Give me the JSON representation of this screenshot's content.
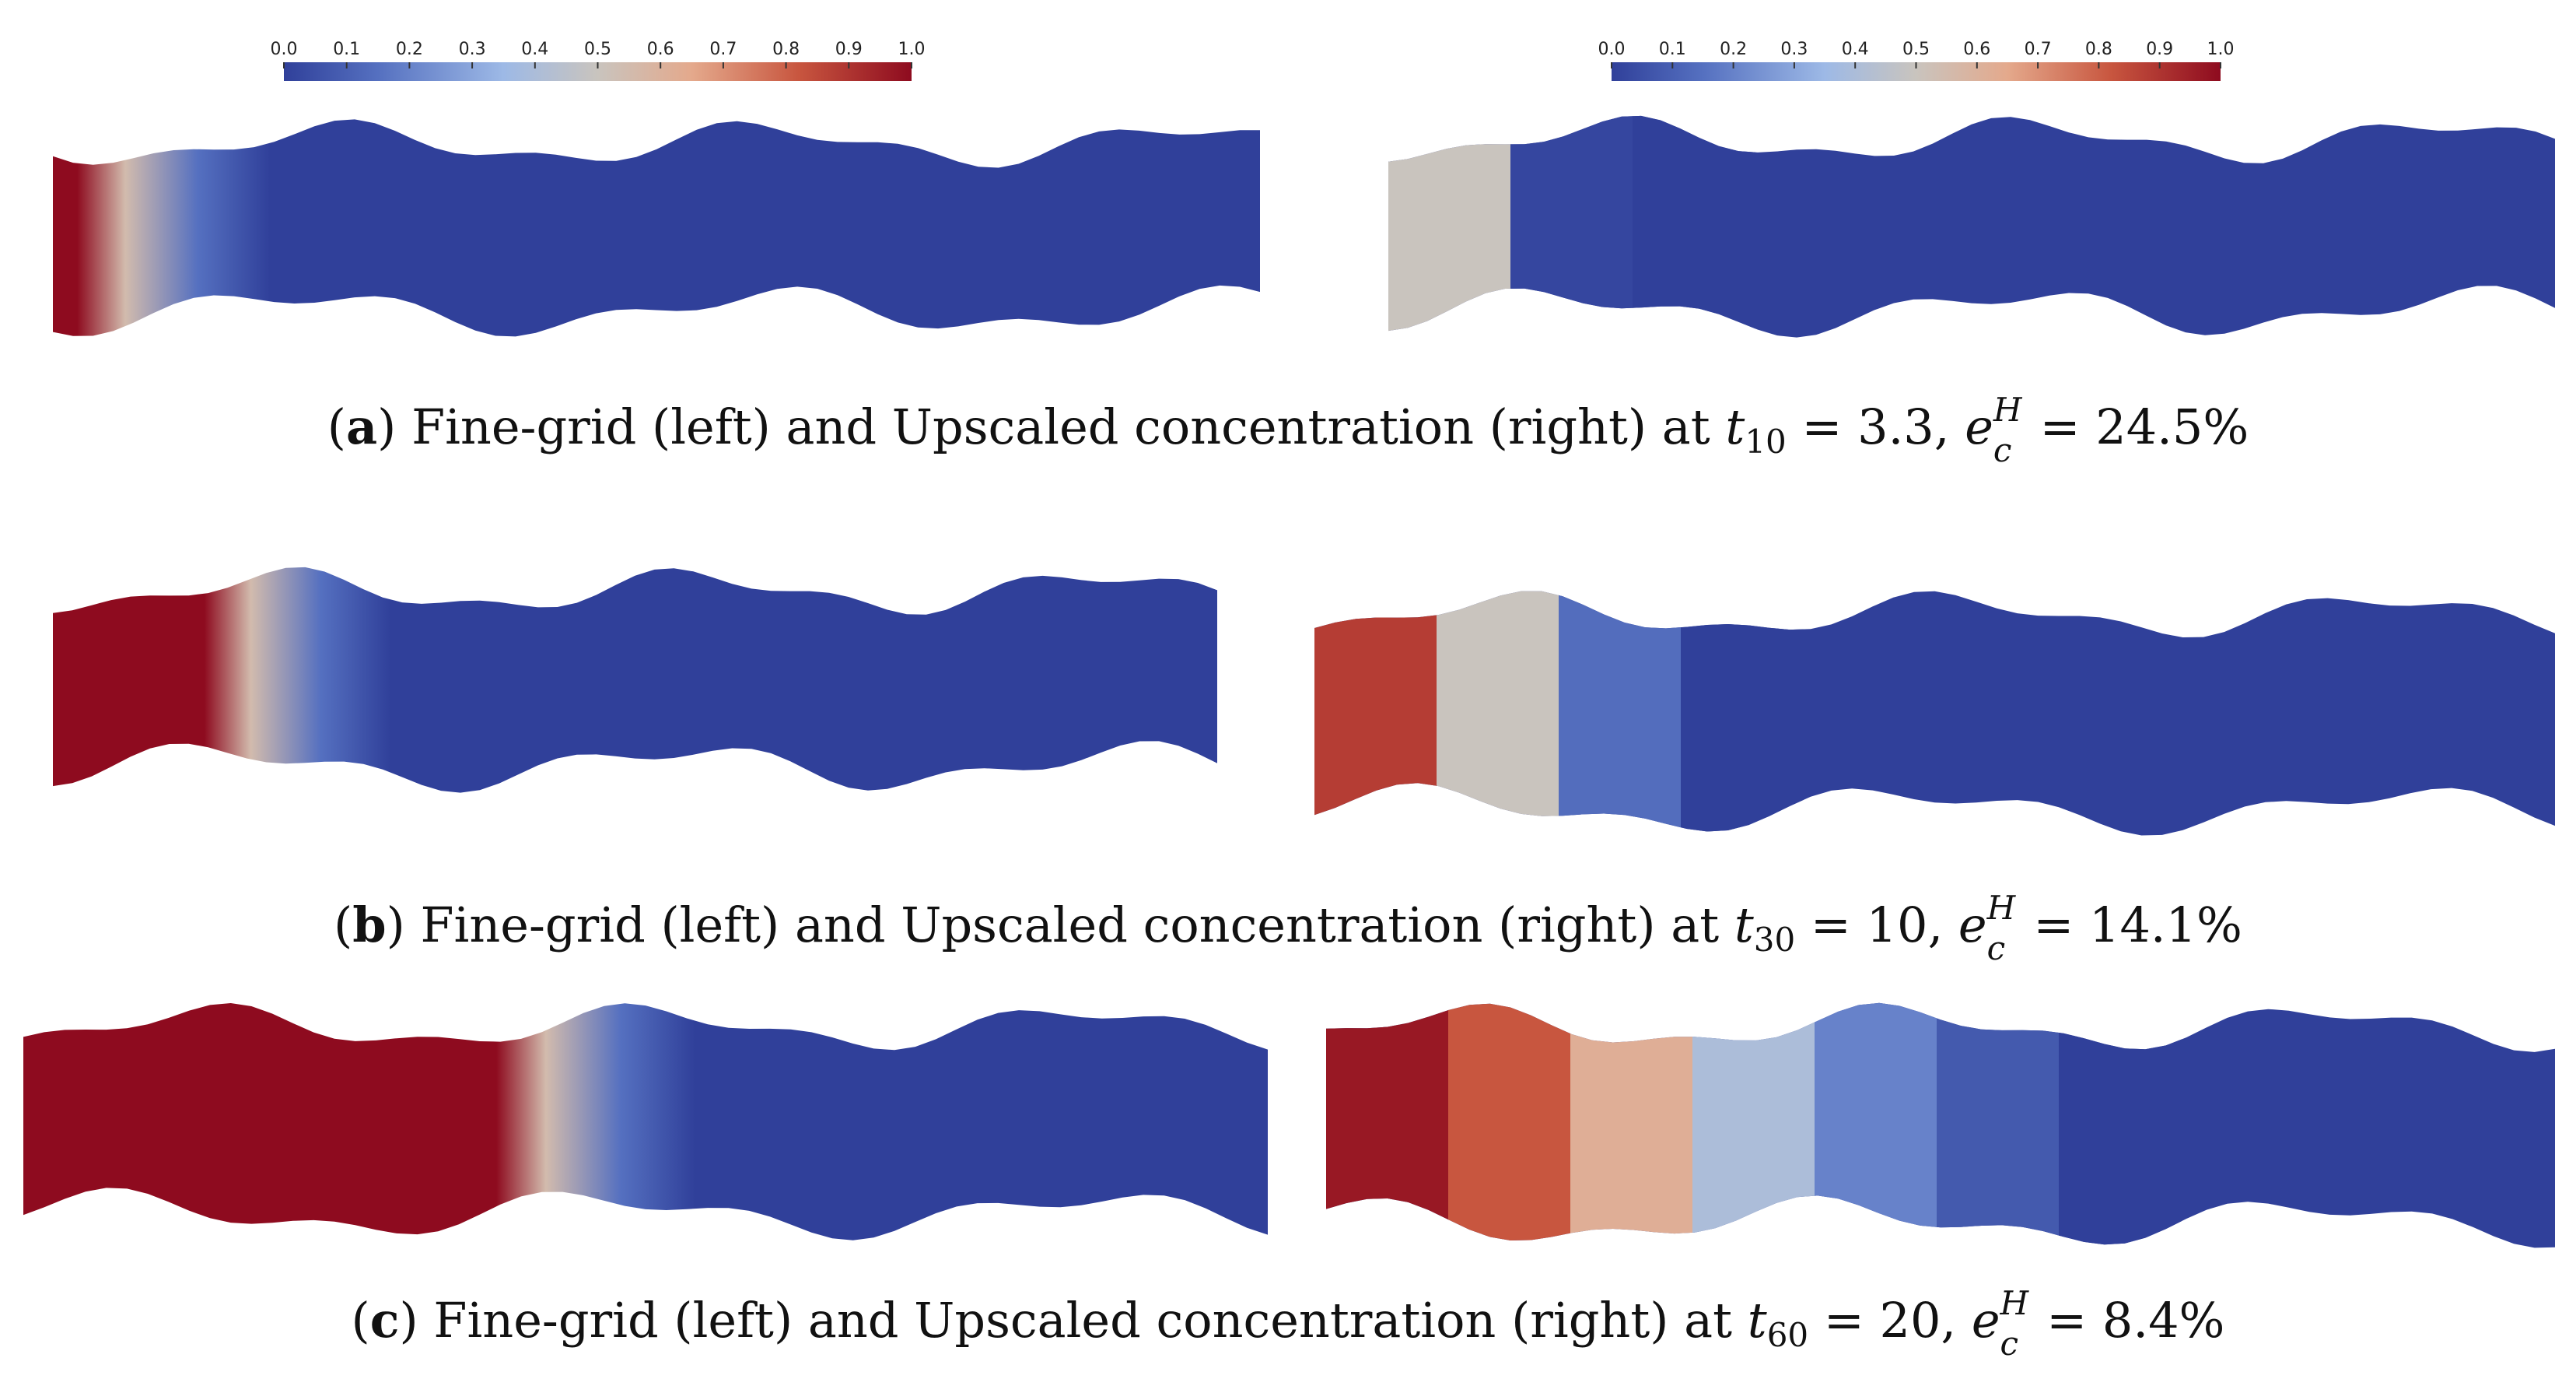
{
  "colorbar": {
    "ticks": [
      "0.0",
      "0.1",
      "0.2",
      "0.3",
      "0.4",
      "0.5",
      "0.6",
      "0.7",
      "0.8",
      "0.9",
      "1.0"
    ],
    "colors": [
      "#3b4cc0",
      "#c9c9c9",
      "#b40426"
    ]
  },
  "panels": [
    {
      "label": "a",
      "caption_text": "Fine-grid (left) and Upscaled concentration (right) at",
      "time_var": "t",
      "time_sub": "10",
      "time_value": "3.3",
      "error_var": "e",
      "error_sub": "c",
      "error_sup": "H",
      "error_value": "24.5%",
      "fine_front": 0.06,
      "upscaled_cells": [
        0.5,
        0.02,
        0.0
      ]
    },
    {
      "label": "b",
      "caption_text": "Fine-grid (left) and Upscaled concentration (right) at",
      "time_var": "t",
      "time_sub": "30",
      "time_value": "10",
      "error_var": "e",
      "error_sub": "c",
      "error_sup": "H",
      "error_value": "14.1%",
      "fine_front": 0.17,
      "upscaled_cells": [
        0.88,
        0.5,
        0.14,
        0.0
      ]
    },
    {
      "label": "c",
      "caption_text": "Fine-grid (left) and Upscaled concentration (right) at",
      "time_var": "t",
      "time_sub": "60",
      "time_value": "20",
      "error_var": "e",
      "error_sub": "c",
      "error_sup": "H",
      "error_value": "8.4%",
      "fine_front": 0.42,
      "upscaled_cells": [
        0.97,
        0.82,
        0.62,
        0.4,
        0.2,
        0.08,
        0.0
      ]
    }
  ]
}
